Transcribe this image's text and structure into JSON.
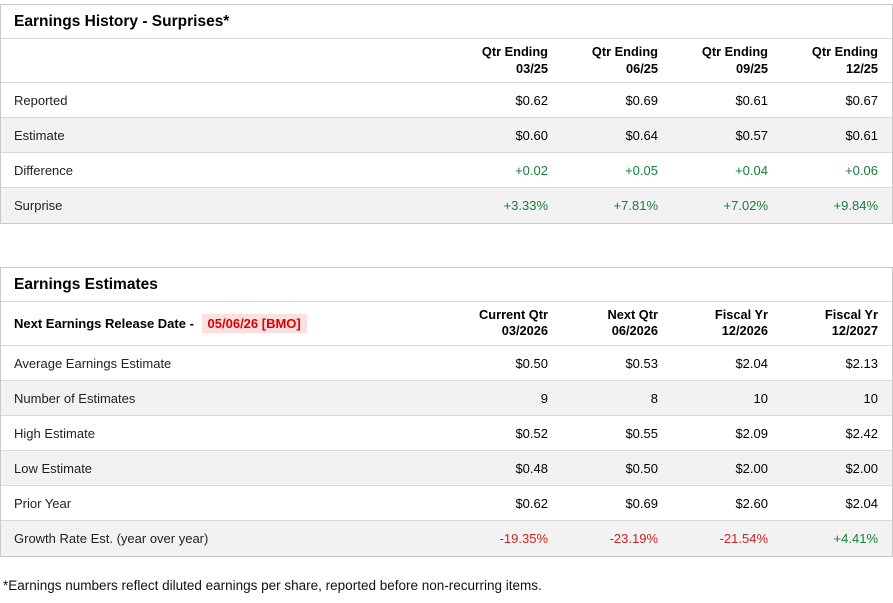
{
  "colors": {
    "positive": "#157e3e",
    "negative": "#cc2222",
    "highlight_text": "#dd0000",
    "highlight_bg": "#fcdfdf"
  },
  "history_table": {
    "title": "Earnings History - Surprises*",
    "columns": [
      {
        "line1": "Qtr Ending",
        "line2": "03/25"
      },
      {
        "line1": "Qtr Ending",
        "line2": "06/25"
      },
      {
        "line1": "Qtr Ending",
        "line2": "09/25"
      },
      {
        "line1": "Qtr Ending",
        "line2": "12/25"
      }
    ],
    "rows": [
      {
        "label": "Reported",
        "values": [
          "$0.62",
          "$0.69",
          "$0.61",
          "$0.67"
        ]
      },
      {
        "label": "Estimate",
        "values": [
          "$0.60",
          "$0.64",
          "$0.57",
          "$0.61"
        ]
      },
      {
        "label": "Difference",
        "values": [
          "+0.02",
          "+0.05",
          "+0.04",
          "+0.06"
        ],
        "value_colors": [
          "pos",
          "pos",
          "pos",
          "pos"
        ]
      },
      {
        "label": "Surprise",
        "values": [
          "+3.33%",
          "+7.81%",
          "+7.02%",
          "+9.84%"
        ],
        "value_colors": [
          "pos",
          "pos",
          "pos",
          "pos"
        ]
      }
    ]
  },
  "estimates_table": {
    "title": "Earnings Estimates",
    "release_label": "Next Earnings Release Date -",
    "release_date": "05/06/26 [BMO]",
    "columns": [
      {
        "line1": "Current Qtr",
        "line2": "03/2026"
      },
      {
        "line1": "Next Qtr",
        "line2": "06/2026"
      },
      {
        "line1": "Fiscal Yr",
        "line2": "12/2026"
      },
      {
        "line1": "Fiscal Yr",
        "line2": "12/2027"
      }
    ],
    "rows": [
      {
        "label": "Average Earnings Estimate",
        "values": [
          "$0.50",
          "$0.53",
          "$2.04",
          "$2.13"
        ]
      },
      {
        "label": "Number of Estimates",
        "values": [
          "9",
          "8",
          "10",
          "10"
        ]
      },
      {
        "label": "High Estimate",
        "values": [
          "$0.52",
          "$0.55",
          "$2.09",
          "$2.42"
        ]
      },
      {
        "label": "Low Estimate",
        "values": [
          "$0.48",
          "$0.50",
          "$2.00",
          "$2.00"
        ]
      },
      {
        "label": "Prior Year",
        "values": [
          "$0.62",
          "$0.69",
          "$2.60",
          "$2.04"
        ]
      },
      {
        "label": "Growth Rate Est. (year over year)",
        "values": [
          "-19.35%",
          "-23.19%",
          "-21.54%",
          "+4.41%"
        ],
        "value_colors": [
          "neg",
          "neg",
          "neg",
          "pos"
        ]
      }
    ]
  },
  "footnote": "*Earnings numbers reflect diluted earnings per share, reported before non-recurring items."
}
